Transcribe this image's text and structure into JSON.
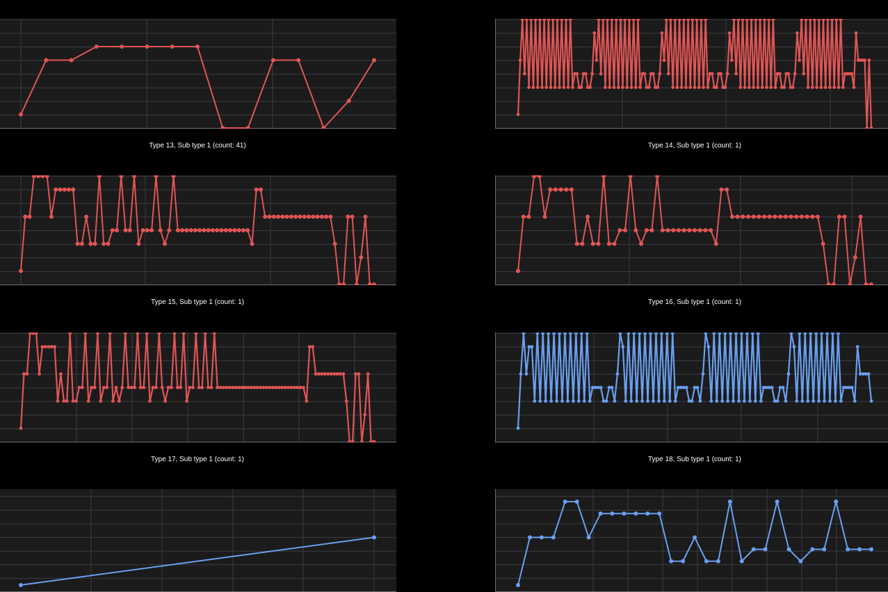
{
  "colors": {
    "background": "#000000",
    "plot_bg": "#1b1b1b",
    "grid": "#3a3d44",
    "axis": "#6b7080",
    "red": "#e15555",
    "blue": "#6a9ff0"
  },
  "chart_data": [
    {
      "type": "line",
      "title": "Type 13, Sub type 1 (count: 41)",
      "color": "#e15555",
      "ylim": [
        0,
        8
      ],
      "y": [
        1,
        5,
        5,
        6,
        6,
        6,
        6,
        6,
        0,
        0,
        5,
        5,
        0,
        2,
        5
      ]
    },
    {
      "type": "line",
      "title": "Type 14, Sub type 1 (count: 1)",
      "color": "#e15555",
      "ylim": [
        0,
        8
      ],
      "y": [
        1,
        5,
        8,
        4,
        8,
        3,
        8,
        3,
        8,
        3,
        8,
        3,
        8,
        3,
        8,
        3,
        8,
        3,
        8,
        3,
        8,
        3,
        8,
        3,
        8,
        3,
        4,
        4,
        3,
        3,
        4,
        4,
        3,
        3,
        4,
        7,
        5,
        8,
        4,
        8,
        3,
        8,
        3,
        8,
        3,
        8,
        3,
        8,
        3,
        8,
        3,
        8,
        3,
        8,
        3,
        8,
        3,
        4,
        4,
        3,
        3,
        4,
        4,
        3,
        3,
        4,
        7,
        5,
        8,
        4,
        8,
        3,
        8,
        3,
        8,
        3,
        8,
        3,
        8,
        3,
        8,
        3,
        8,
        3,
        8,
        3,
        8,
        3,
        4,
        4,
        3,
        3,
        4,
        4,
        3,
        3,
        4,
        7,
        5,
        8,
        4,
        8,
        3,
        8,
        3,
        8,
        3,
        8,
        3,
        8,
        3,
        8,
        3,
        8,
        3,
        8,
        3,
        8,
        3,
        4,
        4,
        3,
        3,
        4,
        4,
        3,
        3,
        4,
        7,
        5,
        8,
        4,
        8,
        3,
        8,
        3,
        8,
        3,
        8,
        3,
        8,
        3,
        8,
        3,
        8,
        3,
        8,
        3,
        8,
        3,
        4,
        4,
        4,
        4,
        3,
        7,
        5,
        5,
        5,
        5,
        0,
        5,
        0
      ]
    },
    {
      "type": "line",
      "title": "Type 15, Sub type 1 (count: 1)",
      "color": "#e15555",
      "ylim": [
        0,
        8
      ],
      "y": [
        1,
        5,
        5,
        8,
        8,
        8,
        8,
        5,
        7,
        7,
        7,
        7,
        7,
        3,
        3,
        5,
        3,
        3,
        8,
        3,
        3,
        4,
        4,
        8,
        4,
        4,
        8,
        3,
        4,
        4,
        4,
        8,
        4,
        3,
        4,
        8,
        4,
        4,
        4,
        4,
        4,
        4,
        4,
        4,
        4,
        4,
        4,
        4,
        4,
        4,
        4,
        4,
        4,
        3,
        7,
        7,
        5,
        5,
        5,
        5,
        5,
        5,
        5,
        5,
        5,
        5,
        5,
        5,
        5,
        5,
        5,
        5,
        3,
        0,
        0,
        5,
        5,
        0,
        2,
        5,
        0,
        0
      ]
    },
    {
      "type": "line",
      "title": "Type 16, Sub type 1 (count: 1)",
      "color": "#e15555",
      "ylim": [
        0,
        8
      ],
      "y": [
        1,
        5,
        5,
        8,
        8,
        5,
        7,
        7,
        7,
        7,
        7,
        3,
        3,
        5,
        3,
        3,
        8,
        3,
        3,
        4,
        4,
        8,
        4,
        3,
        4,
        4,
        8,
        4,
        4,
        4,
        4,
        4,
        4,
        4,
        4,
        4,
        4,
        3,
        7,
        7,
        5,
        5,
        5,
        5,
        5,
        5,
        5,
        5,
        5,
        5,
        5,
        5,
        5,
        5,
        5,
        5,
        5,
        3,
        0,
        0,
        5,
        5,
        0,
        2,
        5,
        0,
        0
      ]
    },
    {
      "type": "line",
      "title": "Type 17, Sub type 1 (count: 1)",
      "color": "#e15555",
      "ylim": [
        0,
        8
      ],
      "y": [
        1,
        5,
        5,
        8,
        8,
        8,
        5,
        7,
        7,
        7,
        7,
        7,
        3,
        5,
        3,
        3,
        8,
        3,
        3,
        4,
        4,
        8,
        3,
        4,
        4,
        8,
        3,
        4,
        4,
        8,
        3,
        4,
        3,
        4,
        8,
        4,
        4,
        4,
        8,
        4,
        4,
        8,
        3,
        4,
        4,
        8,
        4,
        3,
        4,
        4,
        8,
        4,
        4,
        8,
        3,
        4,
        4,
        8,
        4,
        4,
        8,
        4,
        4,
        8,
        4,
        4,
        4,
        4,
        4,
        4,
        4,
        4,
        4,
        4,
        4,
        4,
        4,
        4,
        4,
        4,
        4,
        4,
        4,
        4,
        4,
        4,
        4,
        4,
        4,
        4,
        4,
        4,
        4,
        3,
        7,
        7,
        5,
        5,
        5,
        5,
        5,
        5,
        5,
        5,
        5,
        5,
        3,
        0,
        0,
        5,
        5,
        0,
        2,
        5,
        0,
        0
      ]
    },
    {
      "type": "line",
      "title": "Type 18, Sub type 1 (count: 1)",
      "color": "#6a9ff0",
      "ylim": [
        0,
        8
      ],
      "y": [
        1,
        5,
        8,
        5,
        7,
        7,
        3,
        8,
        3,
        8,
        3,
        8,
        3,
        8,
        3,
        8,
        3,
        8,
        3,
        8,
        3,
        8,
        3,
        8,
        3,
        8,
        3,
        4,
        4,
        4,
        4,
        3,
        3,
        4,
        4,
        3,
        5,
        8,
        7,
        3,
        8,
        3,
        8,
        3,
        8,
        3,
        8,
        3,
        8,
        3,
        8,
        3,
        8,
        3,
        8,
        3,
        8,
        3,
        4,
        4,
        4,
        4,
        3,
        3,
        4,
        4,
        3,
        5,
        8,
        7,
        3,
        8,
        3,
        8,
        3,
        8,
        3,
        8,
        3,
        8,
        3,
        8,
        3,
        8,
        3,
        8,
        3,
        8,
        3,
        4,
        4,
        4,
        4,
        3,
        3,
        4,
        4,
        3,
        5,
        8,
        7,
        3,
        8,
        3,
        8,
        3,
        8,
        3,
        8,
        3,
        8,
        3,
        8,
        3,
        8,
        3,
        8,
        3,
        4,
        4,
        4,
        4,
        3,
        7,
        5,
        5,
        5,
        5,
        3
      ]
    },
    {
      "type": "line",
      "title": "",
      "color": "#6a9ff0",
      "ylim": [
        0,
        8
      ],
      "y": [
        0,
        4
      ]
    },
    {
      "type": "line",
      "title": "",
      "color": "#6a9ff0",
      "ylim": [
        0,
        8
      ],
      "y": [
        0,
        4,
        4,
        4,
        7,
        7,
        4,
        6,
        6,
        6,
        6,
        6,
        6,
        2,
        2,
        4,
        2,
        2,
        7,
        2,
        3,
        3,
        7,
        3,
        2,
        3,
        3,
        7,
        3,
        3,
        3
      ]
    }
  ]
}
